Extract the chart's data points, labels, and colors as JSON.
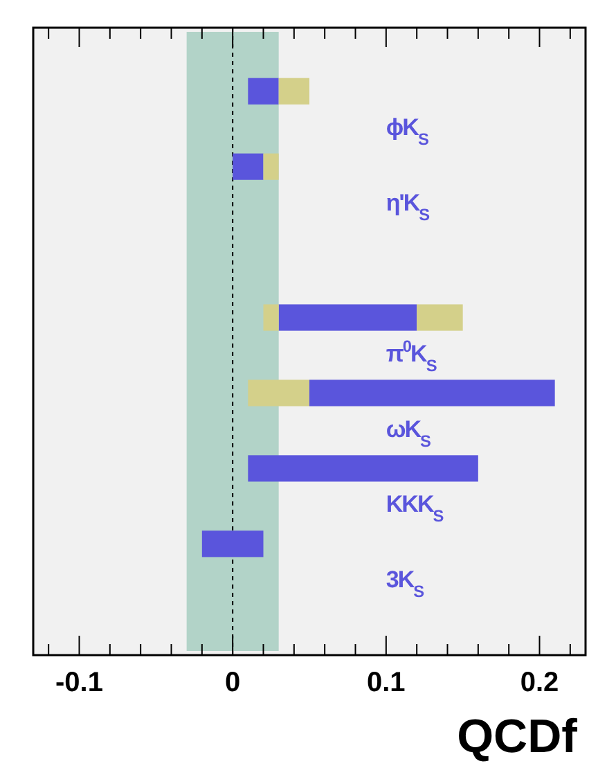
{
  "chart_data": {
    "type": "bar",
    "orientation": "horizontal",
    "categories": [
      "ϕK$_{S}$",
      "η'K$_{S}$",
      null,
      "π$^{0}$K$_{S}$",
      "ωK$_{S}$",
      "KKK$_{S}$",
      "3K$_{S}$",
      null
    ],
    "series": [
      {
        "color": "#5a55dc",
        "base": [
          0.01,
          0,
          null,
          0.03,
          0.05,
          0.01,
          -0.02,
          null
        ],
        "values": [
          0.02,
          0.02,
          null,
          0.09,
          0.16,
          0.15,
          0.04,
          null
        ]
      },
      {
        "color": "#d4d08a",
        "base": [
          null,
          null,
          null,
          0.02,
          0.01,
          null,
          null,
          null
        ],
        "values": [
          null,
          null,
          null,
          0.01,
          0.04,
          null,
          null,
          null
        ]
      },
      {
        "color": "#d4d08a",
        "base": [
          0.03,
          0.02,
          null,
          0.12,
          null,
          null,
          null,
          null
        ],
        "values": [
          0.02,
          0.01,
          null,
          0.03,
          null,
          null,
          null,
          null
        ]
      }
    ],
    "xlim": [
      -0.13,
      0.23
    ],
    "xticks": [
      {
        "value": -0.12,
        "label": null
      },
      -0.1,
      {
        "value": -0.08,
        "label": null
      },
      {
        "value": -0.06,
        "label": null
      },
      {
        "value": -0.04,
        "label": null
      },
      {
        "value": -0.02,
        "label": null
      },
      0,
      {
        "value": 0.02,
        "label": null
      },
      {
        "value": 0.04,
        "label": null
      },
      {
        "value": 0.06,
        "label": null
      },
      {
        "value": 0.08,
        "label": null
      },
      0.1,
      {
        "value": 0.12,
        "label": null
      },
      {
        "value": 0.14,
        "label": null
      },
      {
        "value": 0.16,
        "label": null
      },
      {
        "value": 0.18,
        "label": null
      },
      0.2,
      {
        "value": 0.22,
        "label": null
      }
    ],
    "bands": [
      {
        "axis": "x",
        "from": -0.03,
        "to": 0.03,
        "color": "#b2d3c8"
      }
    ],
    "ref_lines": [
      {
        "axis": "x",
        "value": 0,
        "line_style": "dashed",
        "color": "#000000"
      }
    ],
    "annotations": [
      "QCDf"
    ],
    "grid": false
  }
}
